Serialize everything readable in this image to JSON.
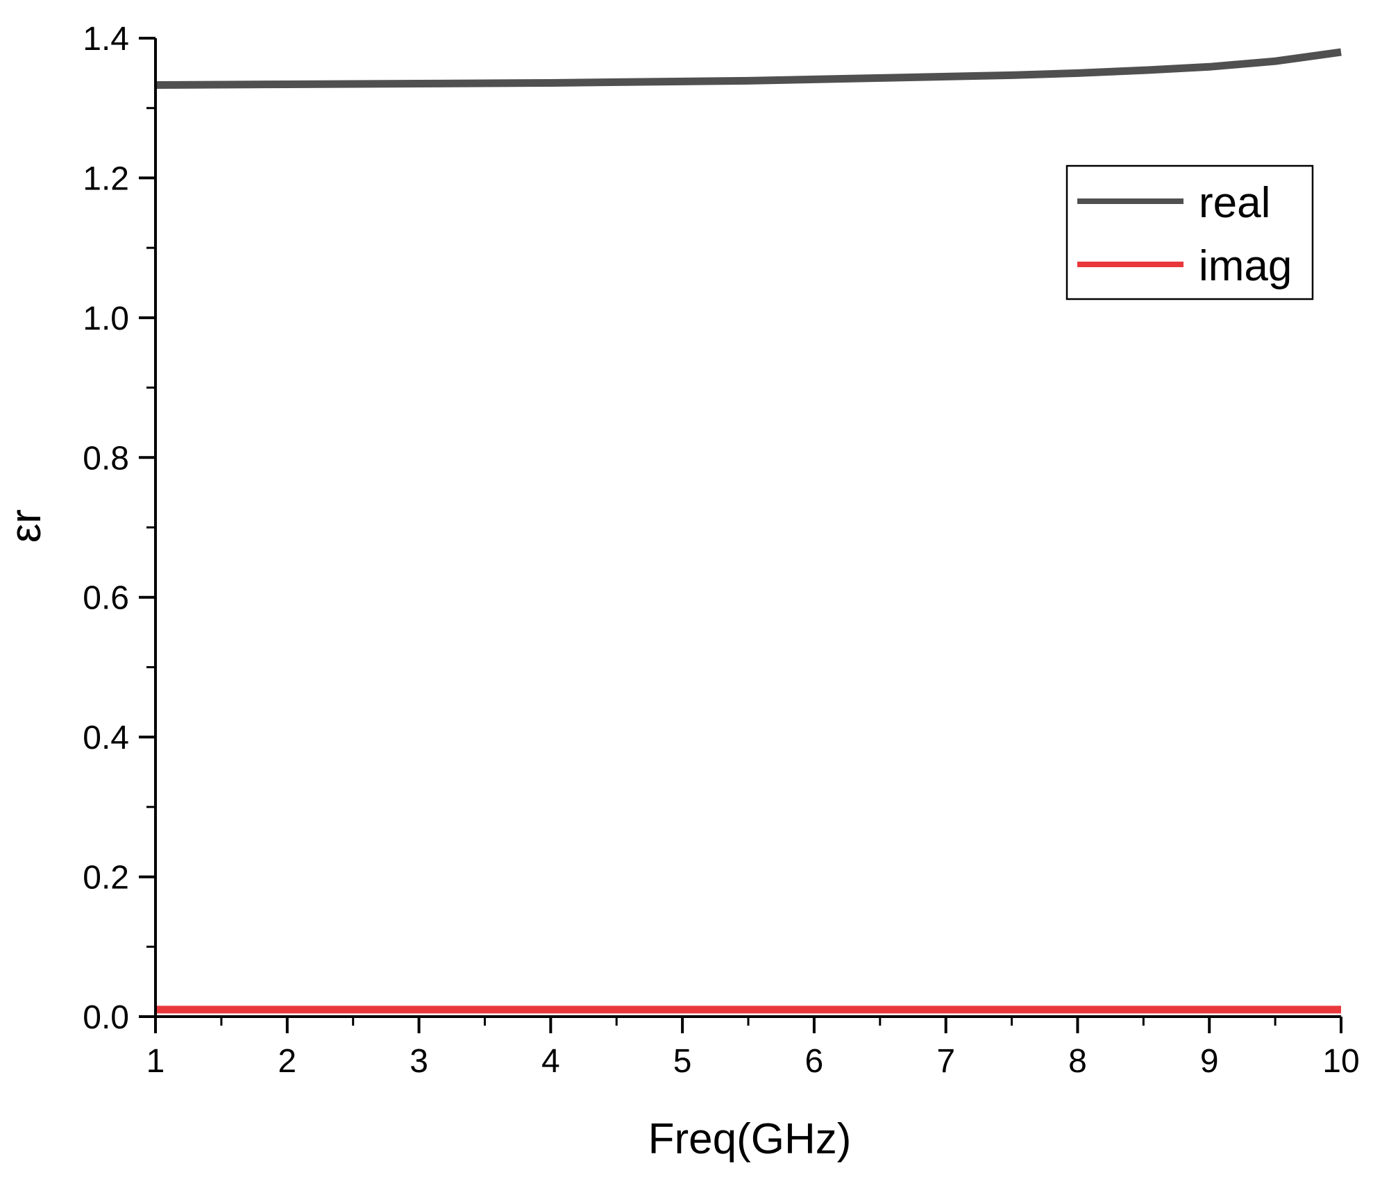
{
  "chart_data": {
    "type": "line",
    "title": "",
    "xlabel": "Freq(GHz)",
    "ylabel": "εr",
    "xlim": [
      1,
      10
    ],
    "ylim": [
      0.0,
      1.4
    ],
    "x_ticks": [
      1,
      2,
      3,
      4,
      5,
      6,
      7,
      8,
      9,
      10
    ],
    "x_tick_labels": [
      "1",
      "2",
      "3",
      "4",
      "5",
      "6",
      "7",
      "8",
      "9",
      "10"
    ],
    "y_ticks": [
      0.0,
      0.2,
      0.4,
      0.6,
      0.8,
      1.0,
      1.2,
      1.4
    ],
    "y_tick_labels": [
      "0.0",
      "0.2",
      "0.4",
      "0.6",
      "0.8",
      "1.0",
      "1.2",
      "1.4"
    ],
    "grid": false,
    "legend_position": "top-right",
    "series": [
      {
        "name": "real",
        "color": "#505050",
        "x": [
          1,
          1.5,
          2,
          2.5,
          3,
          3.5,
          4,
          4.5,
          5,
          5.5,
          6,
          6.5,
          7,
          7.5,
          8,
          8.5,
          9,
          9.5,
          10
        ],
        "y": [
          1.333,
          1.3335,
          1.334,
          1.3345,
          1.335,
          1.3355,
          1.336,
          1.337,
          1.338,
          1.339,
          1.341,
          1.343,
          1.345,
          1.347,
          1.35,
          1.354,
          1.359,
          1.367,
          1.38
        ]
      },
      {
        "name": "imag",
        "color": "#e8383c",
        "x": [
          1,
          2,
          3,
          4,
          5,
          6,
          7,
          8,
          9,
          10
        ],
        "y": [
          0.01,
          0.01,
          0.01,
          0.01,
          0.01,
          0.01,
          0.01,
          0.01,
          0.01,
          0.01
        ]
      }
    ]
  }
}
